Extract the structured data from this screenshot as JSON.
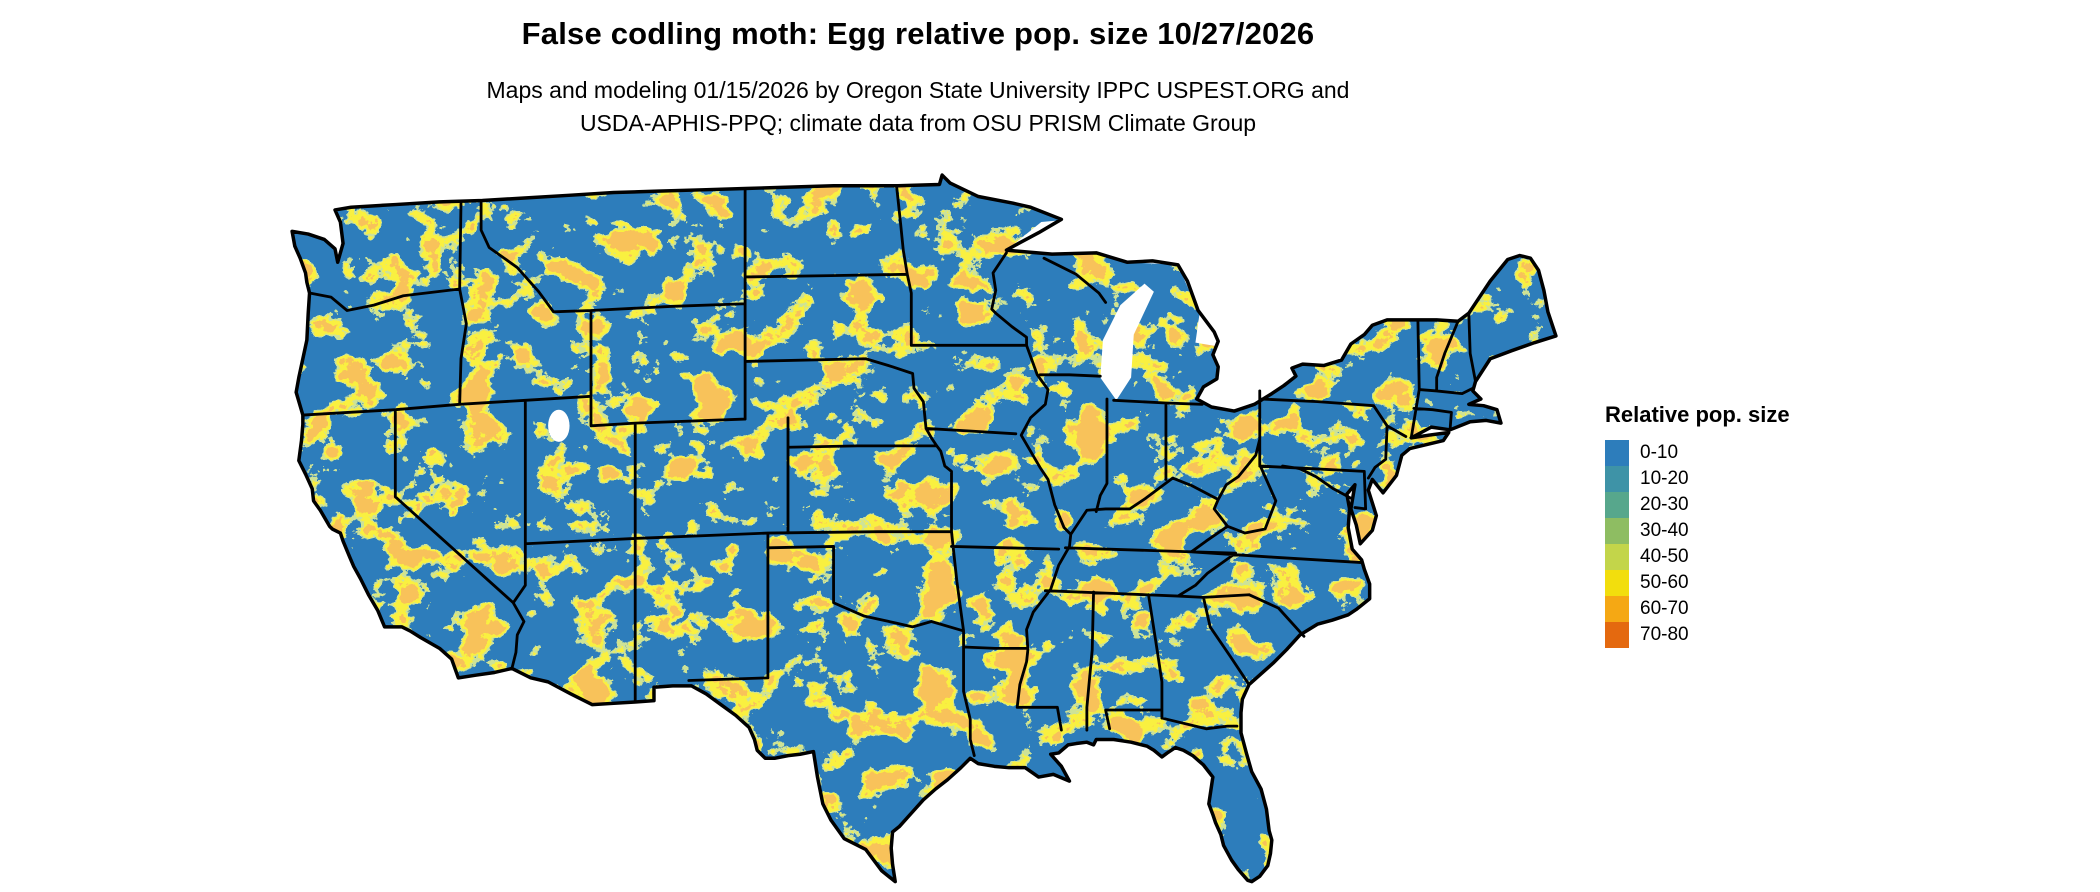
{
  "header": {
    "title": "False codling moth: Egg relative pop. size 10/27/2026",
    "subtitle_line1": "Maps and modeling 01/15/2026 by Oregon State University IPPC USPEST.ORG and",
    "subtitle_line2": "USDA-APHIS-PPQ; climate data from OSU PRISM Climate Group"
  },
  "legend": {
    "title": "Relative pop. size",
    "items": [
      {
        "label": "0-10",
        "color": "#2d7dbb"
      },
      {
        "label": "10-20",
        "color": "#3e93a7"
      },
      {
        "label": "20-30",
        "color": "#57a78c"
      },
      {
        "label": "30-40",
        "color": "#8ebd62"
      },
      {
        "label": "40-50",
        "color": "#c3d54a"
      },
      {
        "label": "50-60",
        "color": "#f2de0d"
      },
      {
        "label": "60-70",
        "color": "#f5a814"
      },
      {
        "label": "70-80",
        "color": "#e4690f"
      }
    ]
  },
  "map": {
    "region": "Continental United States",
    "colors": {
      "base_land": "#2d7dbb",
      "speckle_mid": "#9cc24e",
      "speckle_high": "#f2de0d",
      "speckle_peak": "#f0891a",
      "water": "#ffffff",
      "boundaries": "#000000"
    }
  },
  "chart_data": {
    "type": "heatmap",
    "title": "False codling moth: Egg relative pop. size 10/27/2026",
    "legend_title": "Relative pop. size",
    "classes": [
      "0-10",
      "10-20",
      "20-30",
      "30-40",
      "40-50",
      "50-60",
      "60-70",
      "70-80"
    ],
    "class_colors": [
      "#2d7dbb",
      "#3e93a7",
      "#57a78c",
      "#8ebd62",
      "#c3d54a",
      "#f2de0d",
      "#f5a814",
      "#e4690f"
    ],
    "dominant_class": "0-10",
    "secondary_class": "50-60"
  }
}
